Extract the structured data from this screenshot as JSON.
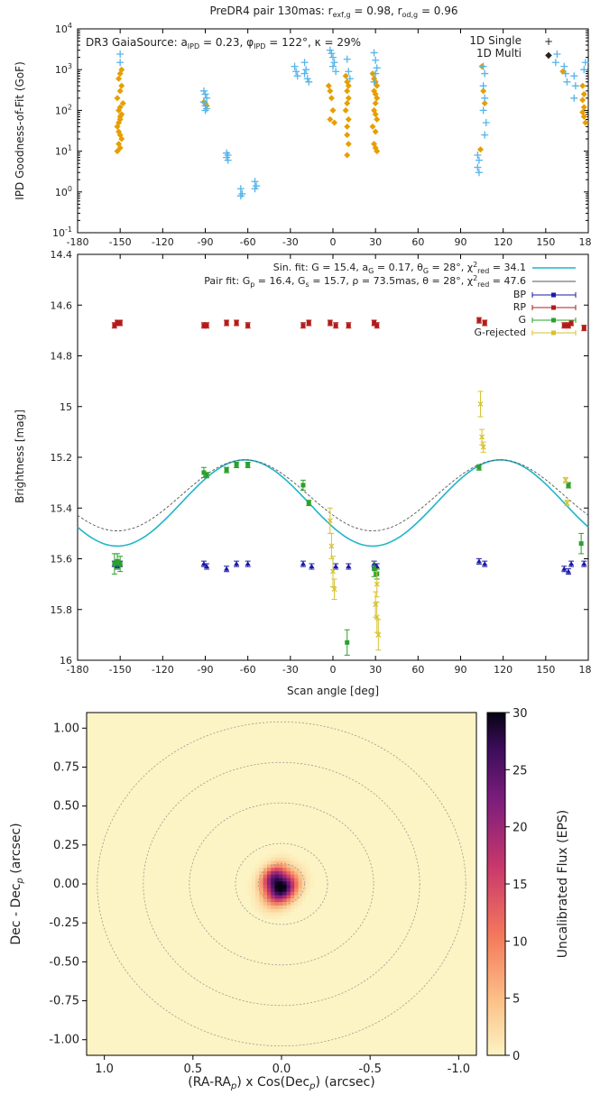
{
  "header": {
    "title_prefix": "PreDR4 pair 130mas: r",
    "title_sub1": "exf,g",
    "title_mid": " = 0.98, r",
    "title_sub2": "od,g",
    "title_suffix": " = 0.96"
  },
  "chart_data": [
    {
      "type": "scatter",
      "id": "goodness-of-fit",
      "ylabel": "IPD Goodness-of-Fit (GoF)",
      "yscale": "log",
      "ylim": [
        0.1,
        10000
      ],
      "xlim": [
        -180,
        180
      ],
      "yticks": [
        "10^-1",
        "10^0",
        "10^1",
        "10^2",
        "10^3",
        "10^4"
      ],
      "xticks": [
        "-180",
        "-150",
        "-120",
        "-90",
        "-60",
        "-30",
        "0",
        "30",
        "60",
        "90",
        "120",
        "150",
        "180"
      ],
      "annotation": "DR3 GaiaSource: a_IPD = 0.23, φ_IPD = 122°, κ = 29%",
      "legend_position": "top-right",
      "colors": {
        "single": "#56B4E9",
        "multi": "#E69F00"
      },
      "series": [
        {
          "name": "1D Single",
          "points": [
            [
              -150,
              2400
            ],
            [
              -150,
              1500
            ],
            [
              -91,
              300
            ],
            [
              -90,
              250
            ],
            [
              -89,
              200
            ],
            [
              -91,
              160
            ],
            [
              -90,
              130
            ],
            [
              -89,
              110
            ],
            [
              -90,
              100
            ],
            [
              -75,
              9
            ],
            [
              -74,
              8
            ],
            [
              -75,
              7
            ],
            [
              -74,
              6
            ],
            [
              -65,
              1.2
            ],
            [
              -64,
              0.9
            ],
            [
              -65,
              0.8
            ],
            [
              -55,
              1.8
            ],
            [
              -54,
              1.4
            ],
            [
              -55,
              1.2
            ],
            [
              -27,
              1200
            ],
            [
              -26,
              900
            ],
            [
              -25,
              700
            ],
            [
              -20,
              1500
            ],
            [
              -19,
              1000
            ],
            [
              -20,
              800
            ],
            [
              -18,
              600
            ],
            [
              -17,
              500
            ],
            [
              -2,
              3000
            ],
            [
              -1,
              2500
            ],
            [
              0,
              2000
            ],
            [
              1,
              1500
            ],
            [
              0,
              1200
            ],
            [
              2,
              900
            ],
            [
              10,
              1800
            ],
            [
              11,
              900
            ],
            [
              12,
              600
            ],
            [
              29,
              2600
            ],
            [
              30,
              1700
            ],
            [
              31,
              1100
            ],
            [
              30,
              800
            ],
            [
              29,
              500
            ],
            [
              103,
              6
            ],
            [
              102,
              4
            ],
            [
              103,
              3
            ],
            [
              102,
              8
            ],
            [
              106,
              1200
            ],
            [
              107,
              800
            ],
            [
              106,
              400
            ],
            [
              107,
              200
            ],
            [
              106,
              100
            ],
            [
              108,
              50
            ],
            [
              107,
              25
            ],
            [
              158,
              2400
            ],
            [
              157,
              1500
            ],
            [
              163,
              1200
            ],
            [
              164,
              800
            ],
            [
              165,
              500
            ],
            [
              170,
              700
            ],
            [
              171,
              400
            ],
            [
              170,
              200
            ],
            [
              178,
              1500
            ],
            [
              177,
              1000
            ]
          ]
        },
        {
          "name": "1D Multi",
          "points": [
            [
              -152,
              40
            ],
            [
              -151,
              30
            ],
            [
              -150,
              25
            ],
            [
              -149,
              20
            ],
            [
              -151,
              15
            ],
            [
              -150,
              12
            ],
            [
              -152,
              10
            ],
            [
              -150,
              60
            ],
            [
              -149,
              80
            ],
            [
              -151,
              100
            ],
            [
              -150,
              120
            ],
            [
              -148,
              150
            ],
            [
              -152,
              200
            ],
            [
              -150,
              300
            ],
            [
              -149,
              400
            ],
            [
              -151,
              600
            ],
            [
              -150,
              800
            ],
            [
              -149,
              1000
            ],
            [
              -151,
              50
            ],
            [
              -150,
              70
            ],
            [
              -90,
              150
            ],
            [
              -89,
              130
            ],
            [
              -91,
              160
            ],
            [
              -3,
              400
            ],
            [
              -2,
              300
            ],
            [
              -1,
              200
            ],
            [
              0,
              100
            ],
            [
              -2,
              60
            ],
            [
              1,
              50
            ],
            [
              9,
              700
            ],
            [
              10,
              500
            ],
            [
              11,
              400
            ],
            [
              10,
              300
            ],
            [
              11,
              200
            ],
            [
              10,
              150
            ],
            [
              9,
              100
            ],
            [
              11,
              60
            ],
            [
              10,
              40
            ],
            [
              10,
              25
            ],
            [
              11,
              15
            ],
            [
              10,
              8
            ],
            [
              28,
              800
            ],
            [
              29,
              600
            ],
            [
              30,
              500
            ],
            [
              31,
              400
            ],
            [
              29,
              300
            ],
            [
              30,
              250
            ],
            [
              31,
              200
            ],
            [
              30,
              150
            ],
            [
              29,
              100
            ],
            [
              30,
              80
            ],
            [
              31,
              60
            ],
            [
              28,
              40
            ],
            [
              30,
              30
            ],
            [
              29,
              15
            ],
            [
              30,
              12
            ],
            [
              31,
              10
            ],
            [
              104,
              11
            ],
            [
              105,
              1200
            ],
            [
              106,
              300
            ],
            [
              107,
              150
            ],
            [
              162,
              900
            ],
            [
              176,
              400
            ],
            [
              177,
              250
            ],
            [
              176,
              180
            ],
            [
              177,
              120
            ],
            [
              176,
              90
            ],
            [
              177,
              70
            ],
            [
              178,
              50
            ]
          ]
        }
      ]
    },
    {
      "type": "scatter",
      "id": "brightness",
      "xlabel": "Scan angle [deg]",
      "ylabel": "Brightness [mag]",
      "ylim": [
        16.0,
        14.4
      ],
      "xlim": [
        -180,
        180
      ],
      "yticks": [
        "14.4",
        "14.6",
        "14.8",
        "15",
        "15.2",
        "15.4",
        "15.6",
        "15.8",
        "16"
      ],
      "xticks": [
        "-180",
        "-150",
        "-120",
        "-90",
        "-60",
        "-30",
        "0",
        "30",
        "60",
        "90",
        "120",
        "150",
        "180"
      ],
      "fit_lines": [
        {
          "name": "Sin. fit",
          "text": "Sin. fit: G = 15.4, a_G = 0.17, θ_G = 28°, χ²_red = 34.1",
          "color": "#1fb5c8",
          "mean": 15.38,
          "amplitude": 0.17,
          "peak_angle": 118
        },
        {
          "name": "Pair fit",
          "text": "Pair fit: G_p = 16.4, G_s = 15.7, ρ = 73.5mas, θ = 28°, χ²_red = 47.6",
          "color": "#555555",
          "mean": 15.35,
          "amplitude": 0.14,
          "peak_angle": 118
        }
      ],
      "legend_position": "top-right",
      "series": [
        {
          "name": "BP",
          "color": "#1a1aa8",
          "points": [
            [
              -154,
              15.62
            ],
            [
              -152,
              15.63
            ],
            [
              -150,
              15.62
            ],
            [
              -91,
              15.62
            ],
            [
              -89,
              15.63
            ],
            [
              -75,
              15.64
            ],
            [
              -68,
              15.62
            ],
            [
              -60,
              15.62
            ],
            [
              -21,
              15.62
            ],
            [
              -15,
              15.63
            ],
            [
              2,
              15.63
            ],
            [
              11,
              15.63
            ],
            [
              29,
              15.62
            ],
            [
              31,
              15.63
            ],
            [
              103,
              15.61
            ],
            [
              107,
              15.62
            ],
            [
              163,
              15.64
            ],
            [
              166,
              15.65
            ],
            [
              168,
              15.62
            ],
            [
              177,
              15.62
            ]
          ]
        },
        {
          "name": "RP",
          "color": "#b31b1b",
          "points": [
            [
              -154,
              14.68
            ],
            [
              -152,
              14.67
            ],
            [
              -150,
              14.67
            ],
            [
              -91,
              14.68
            ],
            [
              -89,
              14.68
            ],
            [
              -75,
              14.67
            ],
            [
              -68,
              14.67
            ],
            [
              -60,
              14.68
            ],
            [
              -21,
              14.68
            ],
            [
              -17,
              14.67
            ],
            [
              -2,
              14.67
            ],
            [
              2,
              14.68
            ],
            [
              11,
              14.68
            ],
            [
              29,
              14.67
            ],
            [
              31,
              14.68
            ],
            [
              103,
              14.66
            ],
            [
              107,
              14.67
            ],
            [
              163,
              14.68
            ],
            [
              166,
              14.68
            ],
            [
              168,
              14.67
            ],
            [
              177,
              14.69
            ]
          ]
        },
        {
          "name": "G",
          "color": "#2ca02c",
          "points": [
            [
              -154,
              15.62
            ],
            [
              -152,
              15.61
            ],
            [
              -150,
              15.62
            ],
            [
              -91,
              15.26
            ],
            [
              -89,
              15.27
            ],
            [
              -75,
              15.25
            ],
            [
              -68,
              15.23
            ],
            [
              -60,
              15.23
            ],
            [
              -21,
              15.31
            ],
            [
              -17,
              15.38
            ],
            [
              10,
              15.93
            ],
            [
              29,
              15.64
            ],
            [
              31,
              15.66
            ],
            [
              103,
              15.24
            ],
            [
              166,
              15.31
            ],
            [
              175,
              15.54
            ]
          ],
          "errors": [
            0.04,
            0.03,
            0.03,
            0.02,
            0.01,
            0.01,
            0.01,
            0.01,
            0.02,
            0.01,
            0.05,
            0.03,
            0.02,
            0.01,
            0.01,
            0.04
          ]
        },
        {
          "name": "G-rejected",
          "color": "#d6c232",
          "points": [
            [
              -2,
              15.45
            ],
            [
              -1,
              15.55
            ],
            [
              0,
              15.65
            ],
            [
              1,
              15.72
            ],
            [
              30,
              15.78
            ],
            [
              31,
              15.83
            ],
            [
              32,
              15.9
            ],
            [
              31,
              15.7
            ],
            [
              104,
              14.99
            ],
            [
              105,
              15.12
            ],
            [
              106,
              15.16
            ],
            [
              164,
              15.29
            ],
            [
              165,
              15.38
            ]
          ],
          "errors": [
            0.05,
            0.05,
            0.06,
            0.04,
            0.05,
            0.06,
            0.06,
            0.05,
            0.05,
            0.03,
            0.02,
            0.01,
            0.01
          ]
        }
      ]
    },
    {
      "type": "heatmap",
      "id": "flux-map",
      "xlabel": "(RA-RA_p) x Cos(Dec_p) (arcsec)",
      "ylabel": "Dec - Dec_p (arcsec)",
      "xlim": [
        1.1,
        -1.1
      ],
      "ylim": [
        -1.1,
        1.1
      ],
      "xticks": [
        "1.0",
        "0.5",
        "0.0",
        "-0.5",
        "-1.0"
      ],
      "yticks": [
        "1.00",
        "0.75",
        "0.50",
        "0.25",
        "0.00",
        "-0.25",
        "-0.50",
        "-0.75",
        "-1.00"
      ],
      "colorbar_label": "Uncalibrated Flux (EPS)",
      "colorbar_ticks": [
        "0",
        "5",
        "10",
        "15",
        "20",
        "25",
        "30"
      ],
      "value_range": [
        0,
        30
      ],
      "rings_arcsec": [
        0.13,
        0.26,
        0.52,
        0.78,
        1.04
      ],
      "sources": [
        {
          "x": 0.0,
          "y": -0.03,
          "peak": 30,
          "sigma_major": 0.07,
          "sigma_minor": 0.05,
          "pa_deg": 35
        },
        {
          "x": 0.05,
          "y": 0.05,
          "peak": 18,
          "sigma_major": 0.06,
          "sigma_minor": 0.04,
          "pa_deg": 35
        }
      ]
    }
  ]
}
